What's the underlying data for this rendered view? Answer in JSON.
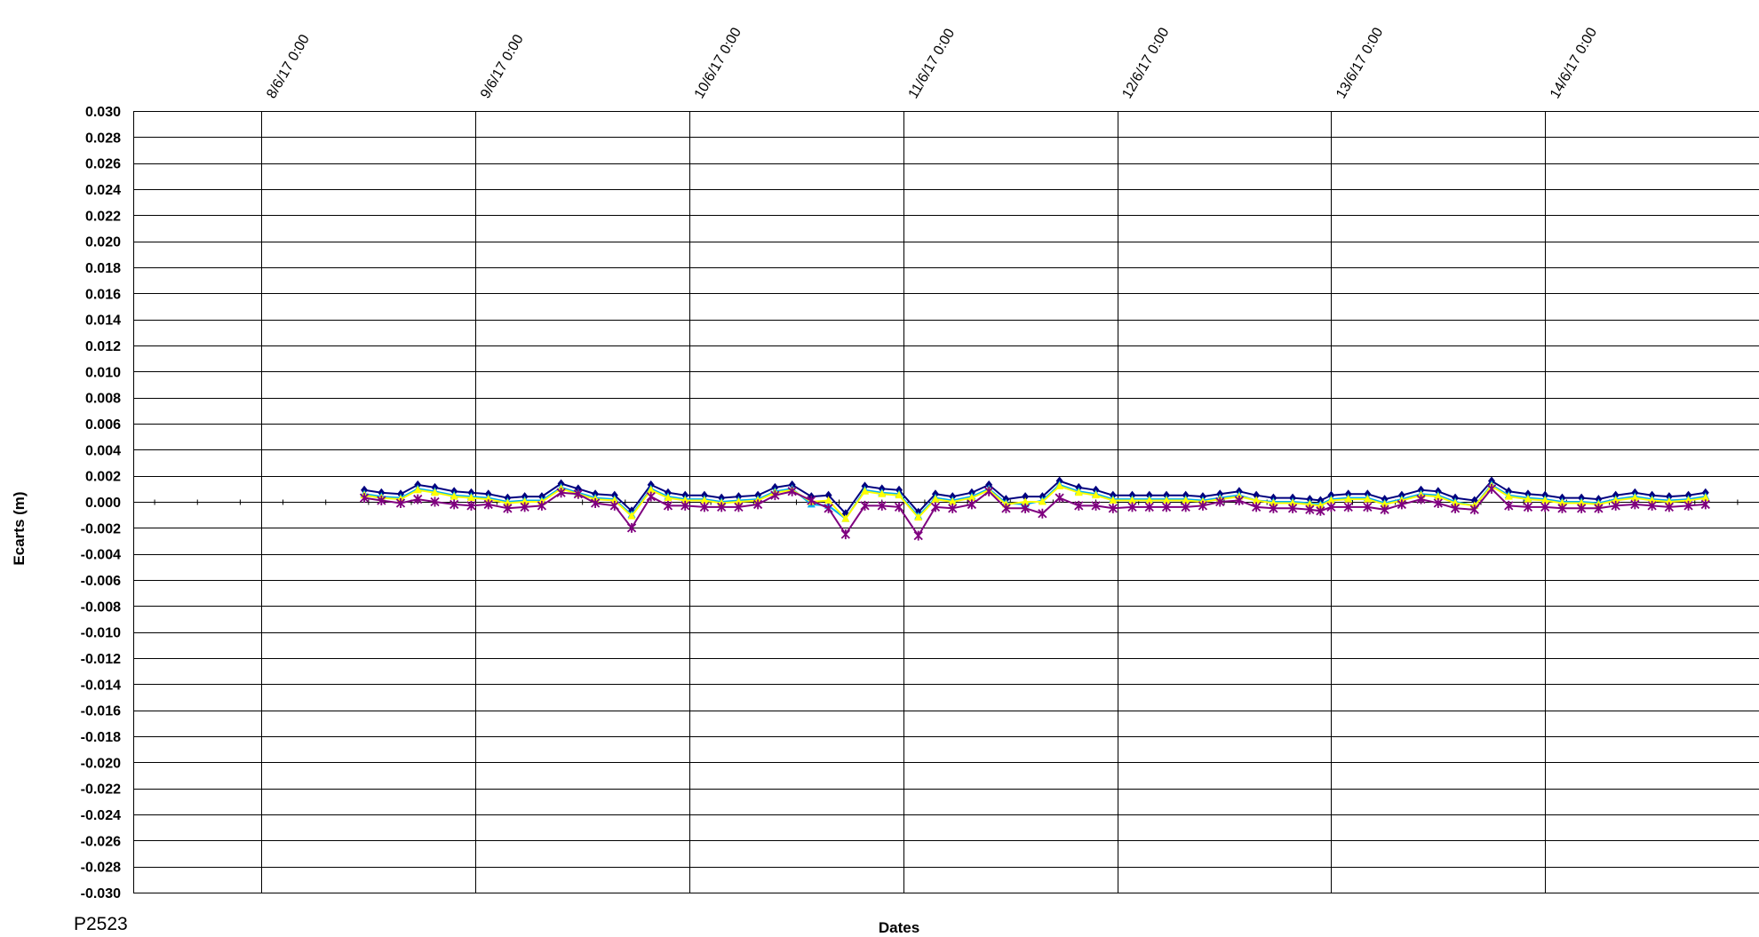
{
  "chart_data": {
    "type": "line",
    "title": "",
    "xlabel": "Dates",
    "ylabel": "Ecarts (m)",
    "footer_label": "P2523",
    "xlim": [
      -0.6,
      7.0
    ],
    "ylim": [
      -0.03,
      0.03
    ],
    "x_tick_labels": [
      "8/6/17 0:00",
      "9/6/17 0:00",
      "10/6/17 0:00",
      "11/6/17 0:00",
      "12/6/17 0:00",
      "13/6/17 0:00",
      "14/6/17 0:00"
    ],
    "y_tick_labels": [
      "0.030",
      "0.028",
      "0.026",
      "0.024",
      "0.022",
      "0.020",
      "0.018",
      "0.016",
      "0.014",
      "0.012",
      "0.010",
      "0.008",
      "0.006",
      "0.004",
      "0.002",
      "0.000",
      "-0.002",
      "-0.004",
      "-0.006",
      "-0.008",
      "-0.010",
      "-0.012",
      "-0.014",
      "-0.016",
      "-0.018",
      "-0.020",
      "-0.022",
      "-0.024",
      "-0.026",
      "-0.028",
      "-0.030"
    ],
    "grid": true,
    "legend": "none",
    "x_days": [
      0.48,
      0.56,
      0.65,
      0.73,
      0.81,
      0.9,
      0.98,
      1.06,
      1.15,
      1.23,
      1.31,
      1.4,
      1.48,
      1.56,
      1.65,
      1.73,
      1.82,
      1.9,
      1.98,
      2.07,
      2.15,
      2.23,
      2.32,
      2.4,
      2.48,
      2.57,
      2.65,
      2.73,
      2.82,
      2.9,
      2.98,
      3.07,
      3.15,
      3.23,
      3.32,
      3.4,
      3.48,
      3.57,
      3.65,
      3.73,
      3.82,
      3.9,
      3.98,
      4.07,
      4.15,
      4.23,
      4.32,
      4.4,
      4.48,
      4.57,
      4.65,
      4.73,
      4.82,
      4.9,
      4.95,
      5.0,
      5.08,
      5.17,
      5.25,
      5.33,
      5.42,
      5.5,
      5.58,
      5.67,
      5.75,
      5.83,
      5.92,
      6.0,
      6.08,
      6.17,
      6.25,
      6.33,
      6.42,
      6.5,
      6.58,
      6.67,
      6.75
    ],
    "series": [
      {
        "color": "#00007f",
        "marker": "diamond",
        "values": [
          0.0009,
          0.0007,
          0.0006,
          0.0013,
          0.0011,
          0.0008,
          0.0007,
          0.0006,
          0.0003,
          0.0004,
          0.0004,
          0.0014,
          0.001,
          0.0006,
          0.0005,
          -0.0007,
          0.0013,
          0.0007,
          0.0005,
          0.0005,
          0.0003,
          0.0004,
          0.0005,
          0.0011,
          0.0013,
          0.0004,
          0.0005,
          -0.0009,
          0.0012,
          0.001,
          0.0009,
          -0.0008,
          0.0006,
          0.0004,
          0.0007,
          0.0013,
          0.0002,
          0.0004,
          0.0004,
          0.0016,
          0.0011,
          0.0009,
          0.0005,
          0.0005,
          0.0005,
          0.0005,
          0.0005,
          0.0004,
          0.0006,
          0.0008,
          0.0005,
          0.0003,
          0.0003,
          0.0002,
          0.0001,
          0.0005,
          0.0006,
          0.0006,
          0.0002,
          0.0005,
          0.0009,
          0.0008,
          0.0003,
          0.0001,
          0.0016,
          0.0008,
          0.0006,
          0.0005,
          0.0003,
          0.0003,
          0.0002,
          0.0005,
          0.0007,
          0.0005,
          0.0004,
          0.0005,
          0.0007
        ]
      },
      {
        "color": "#00b0f0",
        "marker": "triangle",
        "values": [
          0.0006,
          0.0004,
          0.0003,
          0.001,
          0.0008,
          0.0005,
          0.0004,
          0.0003,
          0.0,
          0.0001,
          0.0001,
          0.0011,
          0.0007,
          0.0003,
          0.0002,
          -0.001,
          0.001,
          0.0004,
          0.0002,
          0.0002,
          0.0,
          0.0001,
          0.0002,
          0.0008,
          0.001,
          -0.0002,
          -0.0003,
          -0.0013,
          0.0009,
          0.0007,
          0.0006,
          -0.0011,
          0.0003,
          0.0001,
          0.0004,
          0.001,
          -0.0001,
          -0.0002,
          0.0001,
          0.0013,
          0.0008,
          0.0006,
          0.0002,
          0.0002,
          0.0002,
          0.0002,
          0.0002,
          0.0001,
          0.0003,
          0.0005,
          0.0001,
          0.0,
          0.0,
          -0.0001,
          -0.0002,
          0.0002,
          0.0003,
          0.0003,
          -0.0001,
          0.0002,
          0.0006,
          0.0005,
          0.0,
          -0.0003,
          0.0013,
          0.0005,
          0.0003,
          0.0002,
          0.0,
          0.0,
          -0.0001,
          0.0002,
          0.0004,
          0.0002,
          0.0001,
          0.0002,
          0.0004
        ]
      },
      {
        "color": "#ffff00",
        "marker": "triangle",
        "values": [
          0.0005,
          0.0003,
          0.0002,
          0.0009,
          0.0007,
          0.0004,
          0.0003,
          0.0002,
          -0.0001,
          0.0,
          0.0,
          0.001,
          0.0006,
          0.0002,
          0.0001,
          -0.0011,
          0.0009,
          0.0003,
          0.0001,
          0.0001,
          -0.0001,
          0.0,
          0.0001,
          0.0007,
          0.0009,
          0.0,
          0.0001,
          -0.0013,
          0.0008,
          0.0006,
          0.0005,
          -0.0012,
          0.0002,
          0.0,
          0.0003,
          0.0009,
          -0.0002,
          0.0,
          0.0,
          0.0012,
          0.0007,
          0.0005,
          0.0001,
          0.0001,
          0.0001,
          0.0001,
          0.0001,
          0.0,
          0.0002,
          0.0004,
          0.0001,
          -0.0001,
          -0.0001,
          -0.0002,
          -0.0003,
          0.0001,
          0.0002,
          0.0002,
          -0.0002,
          0.0001,
          0.0005,
          0.0004,
          -0.0001,
          -0.0003,
          0.0012,
          0.0004,
          0.0002,
          0.0001,
          -0.0001,
          -0.0001,
          -0.0002,
          0.0001,
          0.0003,
          0.0001,
          0.0,
          0.0001,
          0.0003
        ]
      },
      {
        "color": "#7f007f",
        "marker": "star",
        "values": [
          0.0003,
          0.0001,
          -0.0001,
          0.0002,
          0.0,
          -0.0002,
          -0.0003,
          -0.0002,
          -0.0005,
          -0.0004,
          -0.0003,
          0.0007,
          0.0006,
          -0.0001,
          -0.0003,
          -0.002,
          0.0004,
          -0.0003,
          -0.0003,
          -0.0004,
          -0.0004,
          -0.0004,
          -0.0002,
          0.0005,
          0.0008,
          0.0001,
          -0.0005,
          -0.0025,
          -0.0003,
          -0.0003,
          -0.0004,
          -0.0026,
          -0.0004,
          -0.0005,
          -0.0002,
          0.0008,
          -0.0005,
          -0.0005,
          -0.0009,
          0.0003,
          -0.0003,
          -0.0003,
          -0.0005,
          -0.0004,
          -0.0004,
          -0.0004,
          -0.0004,
          -0.0003,
          0.0,
          0.0001,
          -0.0004,
          -0.0005,
          -0.0005,
          -0.0006,
          -0.0007,
          -0.0004,
          -0.0004,
          -0.0004,
          -0.0006,
          -0.0002,
          0.0002,
          -0.0001,
          -0.0005,
          -0.0006,
          0.001,
          -0.0003,
          -0.0004,
          -0.0004,
          -0.0005,
          -0.0005,
          -0.0005,
          -0.0003,
          -0.0002,
          -0.0003,
          -0.0004,
          -0.0003,
          -0.0002
        ]
      }
    ]
  }
}
